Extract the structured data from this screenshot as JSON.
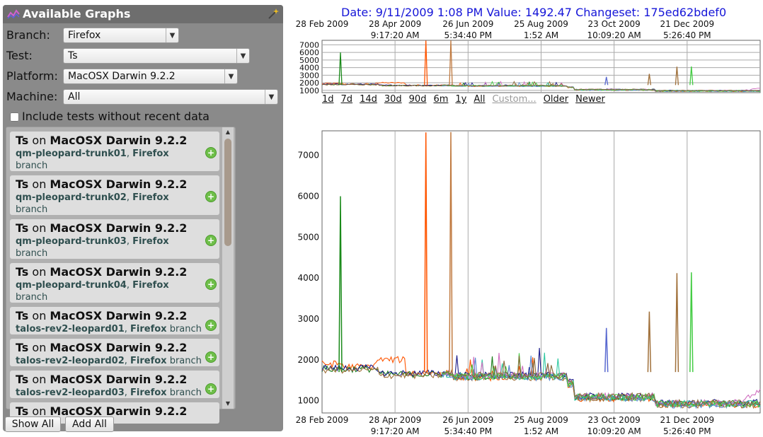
{
  "panel": {
    "title": "Available Graphs",
    "branch_label": "Branch:",
    "branch_value": "Firefox",
    "test_label": "Test:",
    "test_value": "Ts",
    "platform_label": "Platform:",
    "platform_value": "MacOSX Darwin 9.2.2",
    "machine_label": "Machine:",
    "machine_value": "All",
    "include_label": "Include tests without recent data",
    "cards": [
      {
        "test": "Ts",
        "on": "on",
        "platform": "MacOSX Darwin 9.2.2",
        "machine": "qm-pleopard-trunk01",
        "branch": "Firefox",
        "branch_word": "branch"
      },
      {
        "test": "Ts",
        "on": "on",
        "platform": "MacOSX Darwin 9.2.2",
        "machine": "qm-pleopard-trunk02",
        "branch": "Firefox",
        "branch_word": "branch"
      },
      {
        "test": "Ts",
        "on": "on",
        "platform": "MacOSX Darwin 9.2.2",
        "machine": "qm-pleopard-trunk03",
        "branch": "Firefox",
        "branch_word": "branch"
      },
      {
        "test": "Ts",
        "on": "on",
        "platform": "MacOSX Darwin 9.2.2",
        "machine": "qm-pleopard-trunk04",
        "branch": "Firefox",
        "branch_word": "branch"
      },
      {
        "test": "Ts",
        "on": "on",
        "platform": "MacOSX Darwin 9.2.2",
        "machine": "talos-rev2-leopard01",
        "branch": "Firefox",
        "branch_word": "branch"
      },
      {
        "test": "Ts",
        "on": "on",
        "platform": "MacOSX Darwin 9.2.2",
        "machine": "talos-rev2-leopard02",
        "branch": "Firefox",
        "branch_word": "branch"
      },
      {
        "test": "Ts",
        "on": "on",
        "platform": "MacOSX Darwin 9.2.2",
        "machine": "talos-rev2-leopard03",
        "branch": "Firefox",
        "branch_word": "branch"
      },
      {
        "test": "Ts",
        "on": "on",
        "platform": "MacOSX Darwin 9.2.2",
        "machine": "",
        "branch": "",
        "branch_word": ""
      }
    ],
    "show_all": "Show All",
    "add_all": "Add All"
  },
  "status_text": "Date: 9/11/2009 1:08 PM Value: 1492.47 Changeset: 175ed62bdef0",
  "ranges": [
    "1d",
    "7d",
    "14d",
    "30d",
    "90d",
    "6m",
    "1y",
    "All",
    "Custom...",
    "Older",
    "Newer"
  ],
  "chart_data": [
    {
      "type": "line",
      "name": "overview",
      "x_ticks": [
        {
          "line1": "28 Feb 2009",
          "line2": ""
        },
        {
          "line1": "28 Apr 2009",
          "line2": "9:17:20 AM"
        },
        {
          "line1": "26 Jun 2009",
          "line2": "5:34:40 PM"
        },
        {
          "line1": "25 Aug 2009",
          "line2": "1:52 AM"
        },
        {
          "line1": "23 Oct 2009",
          "line2": "10:09:20 AM"
        },
        {
          "line1": "21 Dec 2009",
          "line2": "5:26:40 PM"
        }
      ],
      "y_ticks": [
        1000,
        2000,
        3000,
        4000,
        5000,
        6000,
        7000
      ],
      "ylim": [
        700,
        7600
      ]
    },
    {
      "type": "line",
      "name": "main",
      "x_ticks": [
        {
          "line1": "28 Feb 2009",
          "line2": ""
        },
        {
          "line1": "28 Apr 2009",
          "line2": "9:17:20 AM"
        },
        {
          "line1": "26 Jun 2009",
          "line2": "5:34:40 PM"
        },
        {
          "line1": "25 Aug 2009",
          "line2": "1:52 AM"
        },
        {
          "line1": "23 Oct 2009",
          "line2": "10:09:20 AM"
        },
        {
          "line1": "21 Dec 2009",
          "line2": "5:26:40 PM"
        }
      ],
      "y_ticks": [
        1000,
        2000,
        3000,
        4000,
        5000,
        6000,
        7000
      ],
      "ylim": [
        700,
        7600
      ],
      "grid": true,
      "series_colors": [
        "#ff5500",
        "#1a7d1a",
        "#1a1a8a",
        "#a0703a",
        "#2ec8a0",
        "#d070c0",
        "#5a8ad0",
        "#44cc44",
        "#8a6a3a"
      ],
      "spikes": [
        {
          "x_frac": 0.042,
          "value": 6000,
          "color": "#1a8a1a"
        },
        {
          "x_frac": 0.237,
          "value": 7560,
          "color": "#ff5500"
        },
        {
          "x_frac": 0.294,
          "value": 7570,
          "color": "#c07a40"
        },
        {
          "x_frac": 0.649,
          "value": 2780,
          "color": "#5a6ad0"
        },
        {
          "x_frac": 0.747,
          "value": 3180,
          "color": "#a0703a"
        },
        {
          "x_frac": 0.81,
          "value": 4120,
          "color": "#a0703a"
        },
        {
          "x_frac": 0.843,
          "value": 4140,
          "color": "#44cc44"
        }
      ]
    }
  ]
}
